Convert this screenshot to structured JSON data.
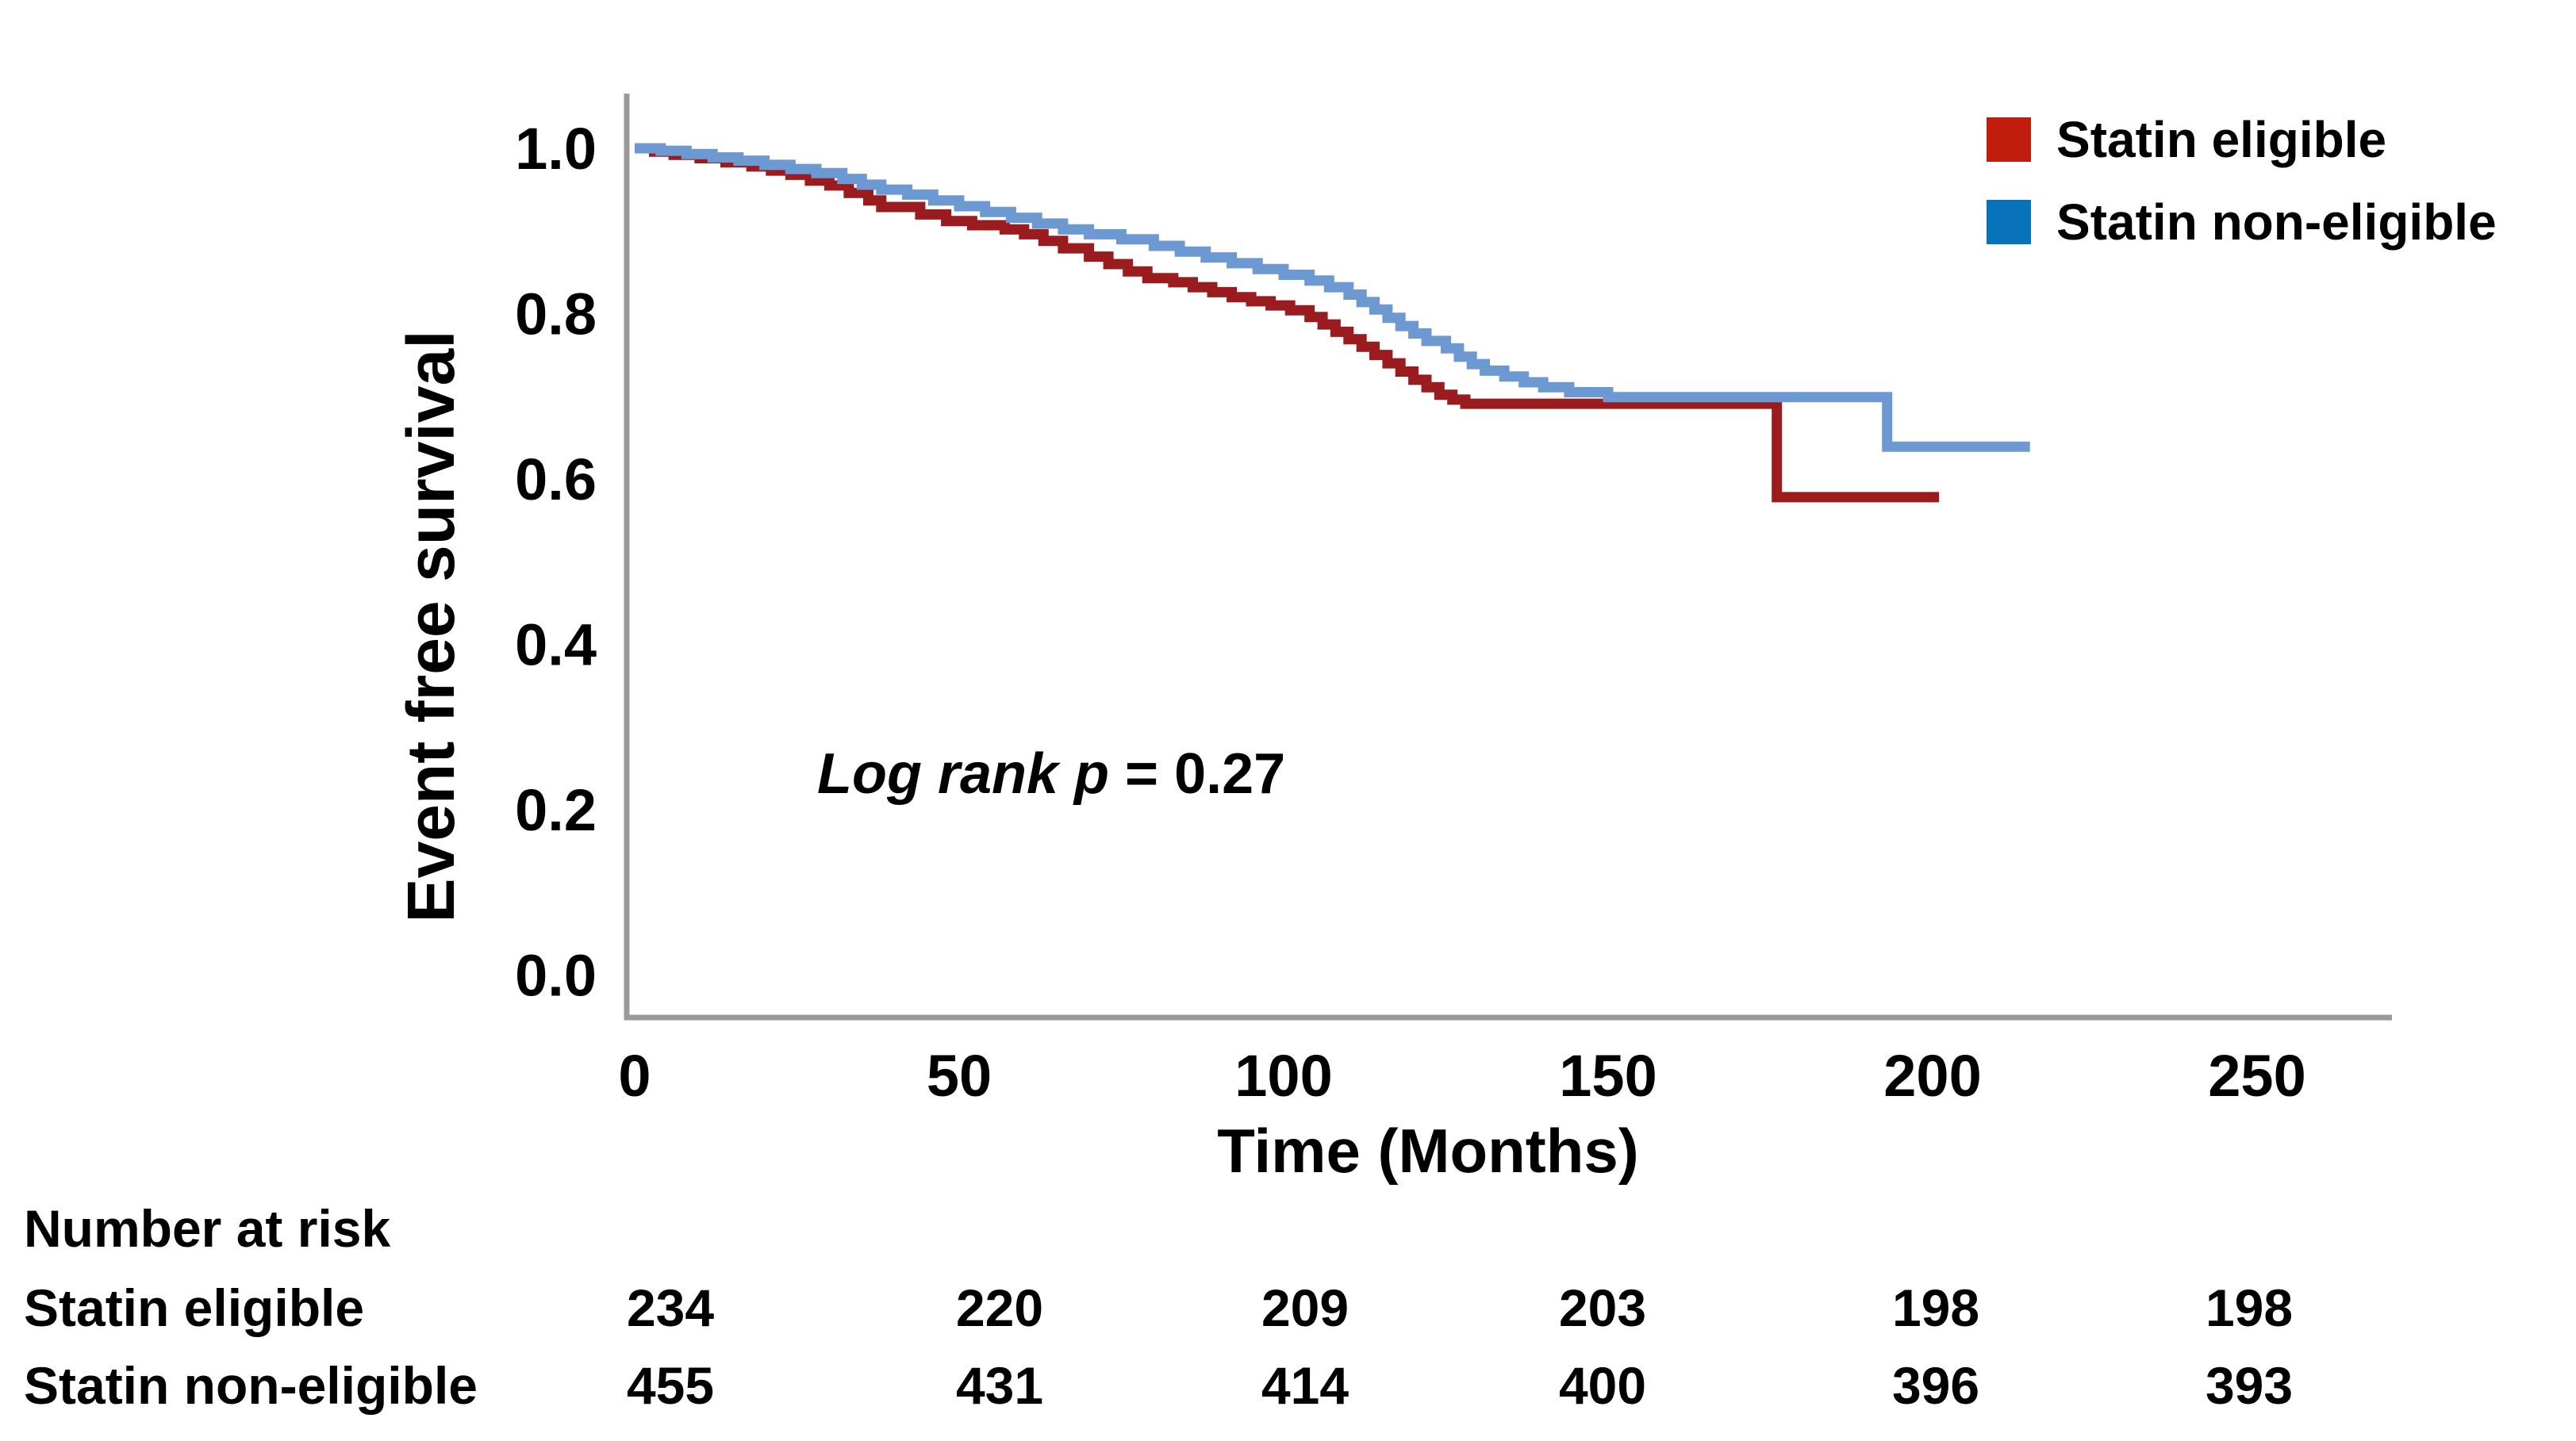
{
  "figure": {
    "background": "#ffffff",
    "axis_color": "#9a9a9a",
    "y_axis": {
      "title": "Event free survival"
    },
    "x_axis": {
      "title": "Time (Months)"
    },
    "annotation": {
      "prefix": "Log rank p",
      "suffix": " = 0.27"
    },
    "legend": [
      {
        "label": "Statin eligible",
        "color": "#c01d0e"
      },
      {
        "label": "Statin non-eligible",
        "color": "#0873bb"
      }
    ]
  },
  "chart_data": {
    "type": "line",
    "subtype": "kaplan-meier-step",
    "title": "",
    "xlabel": "Time (Months)",
    "ylabel": "Event free survival",
    "xlim": [
      0,
      265
    ],
    "ylim": [
      0.0,
      1.0
    ],
    "x_ticks": [
      0,
      50,
      100,
      150,
      200,
      250
    ],
    "y_ticks": [
      1.0,
      0.8,
      0.6,
      0.4,
      0.2,
      0.0
    ],
    "grid": false,
    "legend_position": "top-right",
    "annotation": "Log rank p = 0.27",
    "series": [
      {
        "name": "Statin eligible",
        "line_color": "#9b1c1e",
        "legend_color": "#c01d0e",
        "points": [
          [
            0,
            1.0
          ],
          [
            3,
            0.996
          ],
          [
            6,
            0.992
          ],
          [
            10,
            0.988
          ],
          [
            14,
            0.983
          ],
          [
            18,
            0.978
          ],
          [
            21,
            0.973
          ],
          [
            24,
            0.968
          ],
          [
            27,
            0.961
          ],
          [
            30,
            0.955
          ],
          [
            33,
            0.946
          ],
          [
            36,
            0.937
          ],
          [
            38,
            0.929
          ],
          [
            44,
            0.92
          ],
          [
            48,
            0.912
          ],
          [
            52,
            0.907
          ],
          [
            57,
            0.902
          ],
          [
            60,
            0.896
          ],
          [
            63,
            0.888
          ],
          [
            66,
            0.879
          ],
          [
            70,
            0.869
          ],
          [
            73,
            0.86
          ],
          [
            76,
            0.851
          ],
          [
            79,
            0.843
          ],
          [
            83,
            0.838
          ],
          [
            86,
            0.832
          ],
          [
            89,
            0.826
          ],
          [
            92,
            0.82
          ],
          [
            95,
            0.815
          ],
          [
            98,
            0.81
          ],
          [
            101,
            0.804
          ],
          [
            104,
            0.796
          ],
          [
            106,
            0.787
          ],
          [
            108,
            0.778
          ],
          [
            110,
            0.769
          ],
          [
            112,
            0.76
          ],
          [
            114,
            0.75
          ],
          [
            116,
            0.74
          ],
          [
            118,
            0.73
          ],
          [
            120,
            0.72
          ],
          [
            122,
            0.711
          ],
          [
            124,
            0.702
          ],
          [
            126,
            0.696
          ],
          [
            128,
            0.691
          ],
          [
            176,
            0.691
          ],
          [
            176,
            0.578
          ],
          [
            201,
            0.578
          ]
        ]
      },
      {
        "name": "Statin non-eligible",
        "line_color": "#6d99d3",
        "legend_color": "#0873bb",
        "points": [
          [
            0,
            1.0
          ],
          [
            4,
            0.997
          ],
          [
            8,
            0.993
          ],
          [
            12,
            0.989
          ],
          [
            16,
            0.985
          ],
          [
            20,
            0.98
          ],
          [
            24,
            0.975
          ],
          [
            28,
            0.97
          ],
          [
            32,
            0.963
          ],
          [
            35,
            0.956
          ],
          [
            38,
            0.95
          ],
          [
            42,
            0.944
          ],
          [
            46,
            0.937
          ],
          [
            50,
            0.93
          ],
          [
            54,
            0.923
          ],
          [
            58,
            0.916
          ],
          [
            62,
            0.909
          ],
          [
            66,
            0.902
          ],
          [
            70,
            0.896
          ],
          [
            75,
            0.89
          ],
          [
            80,
            0.882
          ],
          [
            84,
            0.875
          ],
          [
            88,
            0.868
          ],
          [
            92,
            0.861
          ],
          [
            96,
            0.854
          ],
          [
            100,
            0.847
          ],
          [
            104,
            0.84
          ],
          [
            107,
            0.832
          ],
          [
            110,
            0.823
          ],
          [
            112,
            0.814
          ],
          [
            114,
            0.805
          ],
          [
            116,
            0.795
          ],
          [
            118,
            0.785
          ],
          [
            120,
            0.776
          ],
          [
            122,
            0.767
          ],
          [
            125,
            0.758
          ],
          [
            127,
            0.748
          ],
          [
            129,
            0.739
          ],
          [
            131,
            0.731
          ],
          [
            134,
            0.724
          ],
          [
            137,
            0.717
          ],
          [
            140,
            0.711
          ],
          [
            144,
            0.705
          ],
          [
            150,
            0.699
          ],
          [
            193,
            0.699
          ],
          [
            193,
            0.639
          ],
          [
            215,
            0.639
          ]
        ]
      }
    ]
  },
  "risk_table": {
    "header": "Number at risk",
    "time_points": [
      0,
      50,
      100,
      150,
      200,
      250
    ],
    "rows": [
      {
        "label": "Statin eligible",
        "values": [
          "234",
          "220",
          "209",
          "203",
          "198",
          "198"
        ]
      },
      {
        "label": "Statin non-eligible",
        "values": [
          "455",
          "431",
          "414",
          "400",
          "396",
          "393"
        ]
      }
    ]
  }
}
